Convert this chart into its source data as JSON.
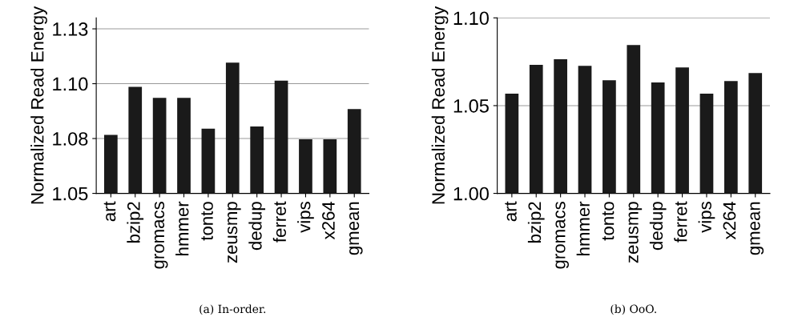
{
  "chart_data": [
    {
      "type": "bar",
      "ylabel": "Normalized Read Energy",
      "categories": [
        "art",
        "bzip2",
        "gromacs",
        "hmmer",
        "tonto",
        "zeusmp",
        "dedup",
        "ferret",
        "vips",
        "x264",
        "gmean"
      ],
      "values": [
        1.0767,
        1.0986,
        1.0935,
        1.0935,
        1.0795,
        1.1096,
        1.0805,
        1.1014,
        1.0747,
        1.0747,
        1.0884
      ],
      "color": "#1a1a1a",
      "ylim": [
        1.05,
        1.13
      ],
      "yticks": [
        1.05,
        {
          "value": 1.075,
          "label": "1.08"
        },
        {
          "value": 1.1,
          "label": "1.10"
        },
        {
          "value": 1.125,
          "label": "1.13"
        }
      ],
      "grid": "y",
      "annotations": [
        "(a) In-order."
      ]
    },
    {
      "type": "bar",
      "ylabel": "Normalized Read Energy",
      "categories": [
        "art",
        "bzip2",
        "gromacs",
        "hmmer",
        "tonto",
        "zeusmp",
        "dedup",
        "ferret",
        "vips",
        "x264",
        "gmean"
      ],
      "values": [
        1.0568,
        1.0732,
        1.0764,
        1.0727,
        1.0645,
        1.0845,
        1.0632,
        1.0718,
        1.0568,
        1.064,
        1.0686
      ],
      "color": "#1a1a1a",
      "ylim": [
        1.0,
        1.1
      ],
      "yticks": [
        {
          "value": 1.0,
          "label": "1.00"
        },
        1.05,
        {
          "value": 1.1,
          "label": "1.10"
        }
      ],
      "grid": "y",
      "annotations": [
        "(b) OoO."
      ]
    }
  ]
}
